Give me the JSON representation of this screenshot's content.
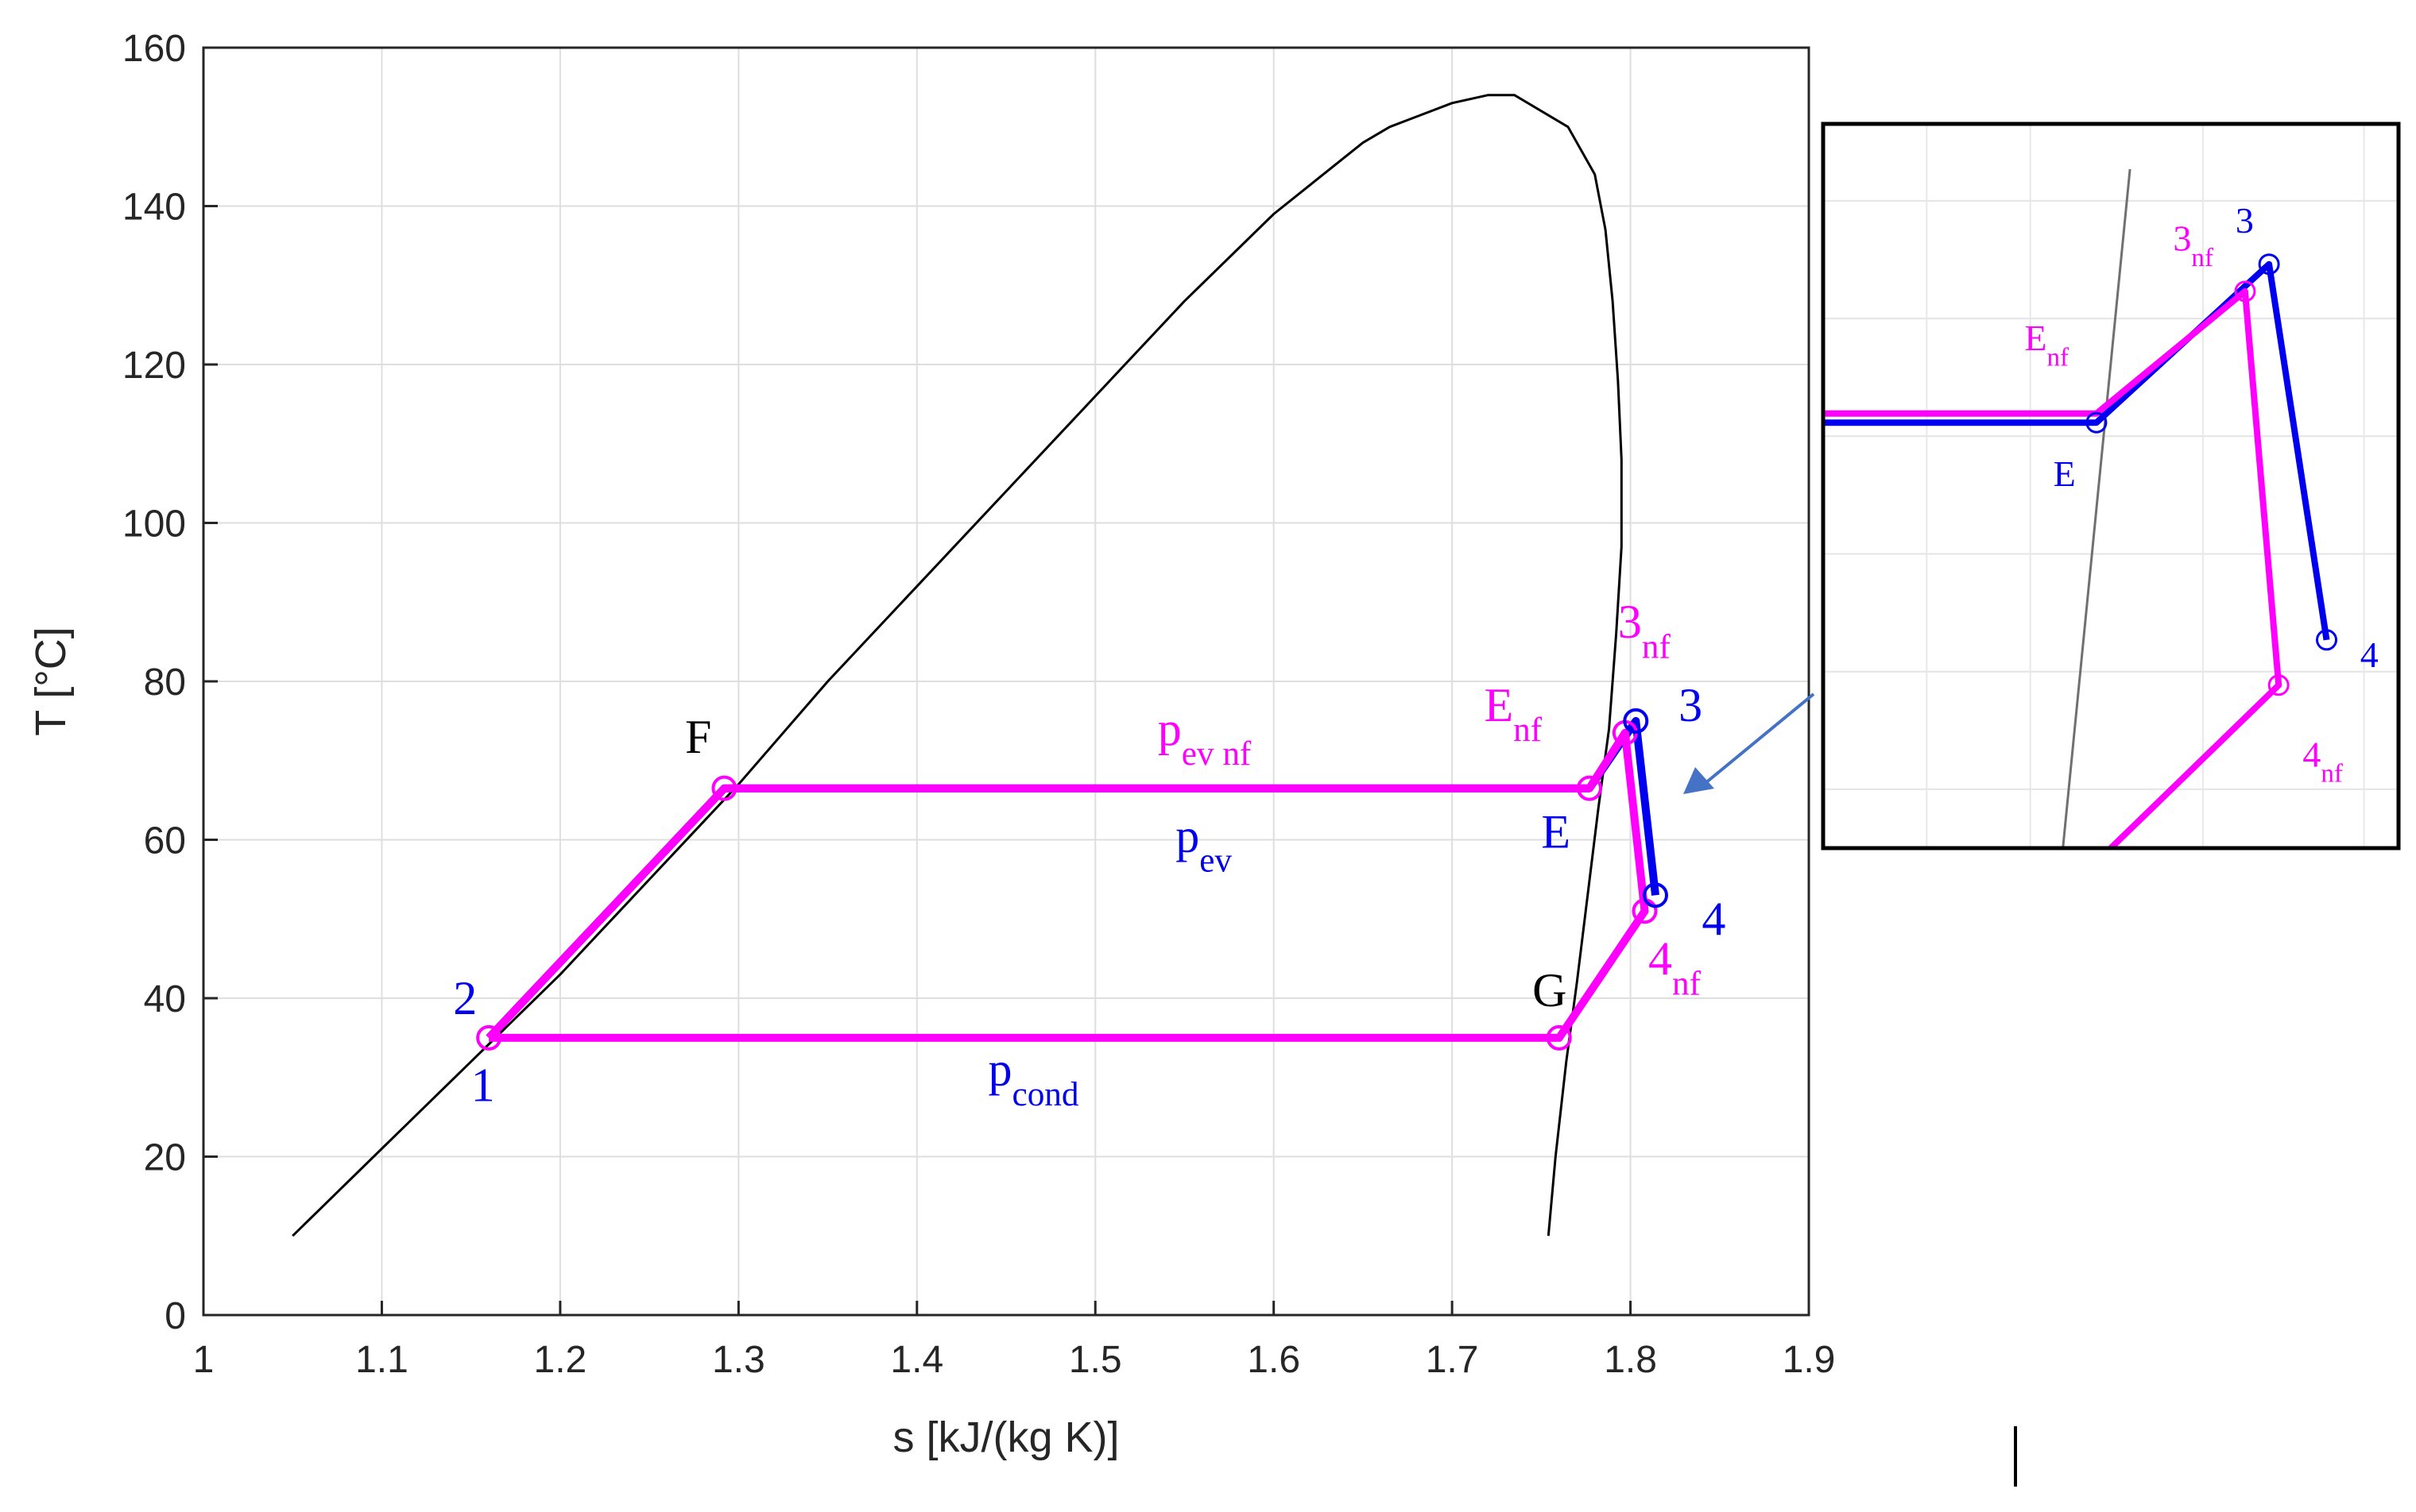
{
  "chart_data": {
    "type": "line",
    "xlabel": "s [kJ/(kg K)]",
    "ylabel": "T [°C]",
    "xlim": [
      1,
      1.9
    ],
    "ylim": [
      0,
      160
    ],
    "xticks": [
      "1",
      "1.1",
      "1.2",
      "1.3",
      "1.4",
      "1.5",
      "1.6",
      "1.7",
      "1.8",
      "1.9"
    ],
    "yticks": [
      "0",
      "20",
      "40",
      "60",
      "80",
      "100",
      "120",
      "140",
      "160"
    ],
    "grid": true,
    "colors": {
      "blue": "#0000ee",
      "magenta": "#ff00ff",
      "dome": "#000000"
    },
    "dome": {
      "x": [
        1.05,
        1.1,
        1.15,
        1.2,
        1.25,
        1.3,
        1.35,
        1.4,
        1.45,
        1.5,
        1.55,
        1.6,
        1.65,
        1.665,
        1.7,
        1.72,
        1.735,
        1.765,
        1.78,
        1.786,
        1.79,
        1.793,
        1.795,
        1.795,
        1.792,
        1.788,
        1.782,
        1.776,
        1.77,
        1.764,
        1.758,
        1.754
      ],
      "y": [
        10,
        21,
        32,
        43,
        55,
        67,
        80,
        92,
        104,
        116,
        128,
        139,
        148,
        150,
        153,
        154,
        154,
        150,
        144,
        137,
        128,
        118,
        108,
        97,
        86,
        74,
        64,
        53,
        42,
        32,
        20,
        10
      ]
    },
    "series": [
      {
        "x": [
          1.16,
          1.292,
          1.777,
          1.803,
          1.814
        ],
        "y": [
          35,
          66.5,
          66.5,
          75,
          53
        ]
      },
      {
        "x": [
          1.16,
          1.292,
          1.777,
          1.797,
          1.808,
          1.76,
          1.16
        ],
        "y": [
          35,
          66.5,
          66.5,
          73.5,
          51,
          35,
          35
        ]
      }
    ],
    "markers": [
      {
        "x": 1.16,
        "y": 35,
        "color": "magenta"
      },
      {
        "x": 1.292,
        "y": 66.5,
        "color": "magenta"
      },
      {
        "x": 1.777,
        "y": 66.5,
        "color": "magenta"
      },
      {
        "x": 1.797,
        "y": 73.5,
        "color": "magenta"
      },
      {
        "x": 1.808,
        "y": 51,
        "color": "magenta"
      },
      {
        "x": 1.76,
        "y": 35,
        "color": "magenta"
      },
      {
        "x": 1.803,
        "y": 75,
        "color": "blue"
      },
      {
        "x": 1.814,
        "y": 53,
        "color": "blue"
      }
    ],
    "annotations": [
      {
        "id": "2",
        "text": "2",
        "sub": "",
        "color": "blue",
        "x": 1.14,
        "y": 38
      },
      {
        "id": "1",
        "text": "1",
        "sub": "",
        "color": "blue",
        "x": 1.15,
        "y": 27
      },
      {
        "id": "F",
        "text": "F",
        "sub": "",
        "color": "black",
        "x": 1.27,
        "y": 71
      },
      {
        "id": "pev-nf",
        "text": "p",
        "sub": "ev nf",
        "color": "magenta",
        "x": 1.535,
        "y": 72
      },
      {
        "id": "pev",
        "text": "p",
        "sub": "ev",
        "color": "blue",
        "x": 1.545,
        "y": 58.5
      },
      {
        "id": "pcond",
        "text": "p",
        "sub": "cond",
        "color": "blue",
        "x": 1.44,
        "y": 29
      },
      {
        "id": "Enf",
        "text": "E",
        "sub": "nf",
        "color": "magenta",
        "x": 1.718,
        "y": 75
      },
      {
        "id": "E",
        "text": "E",
        "sub": "",
        "color": "blue",
        "x": 1.75,
        "y": 59
      },
      {
        "id": "3nf",
        "text": "3",
        "sub": "nf",
        "color": "magenta",
        "x": 1.793,
        "y": 85.5
      },
      {
        "id": "3",
        "text": "3",
        "sub": "",
        "color": "blue",
        "x": 1.827,
        "y": 75
      },
      {
        "id": "G",
        "text": "G",
        "sub": "",
        "color": "black",
        "x": 1.745,
        "y": 39
      },
      {
        "id": "4",
        "text": "4",
        "sub": "",
        "color": "blue",
        "x": 1.84,
        "y": 48
      },
      {
        "id": "4nf",
        "text": "4",
        "sub": "nf",
        "color": "magenta",
        "x": 1.81,
        "y": 43
      }
    ],
    "inset": {
      "dome_line": {
        "x": [
          2.5,
          3.2
        ],
        "y": [
          0.0,
          7.5
        ]
      },
      "blue_path": {
        "x": [
          0,
          2.85,
          4.65,
          5.25
        ],
        "y": [
          4.7,
          4.7,
          6.45,
          2.3
        ]
      },
      "magenta_path": {
        "x": [
          0,
          2.85,
          4.4,
          4.75,
          3.0
        ],
        "y": [
          4.8,
          4.8,
          6.15,
          1.8,
          0
        ]
      },
      "markers": [
        {
          "x": 2.85,
          "y": 4.7,
          "color": "blue"
        },
        {
          "x": 4.65,
          "y": 6.45,
          "color": "blue"
        },
        {
          "x": 5.25,
          "y": 2.3,
          "color": "blue"
        },
        {
          "x": 4.4,
          "y": 6.15,
          "color": "magenta"
        },
        {
          "x": 4.75,
          "y": 1.8,
          "color": "magenta"
        }
      ],
      "annotations": [
        {
          "id": "in-3nf",
          "text": "3",
          "sub": "nf",
          "color": "magenta",
          "x": 3.65,
          "y": 6.6
        },
        {
          "id": "in-3",
          "text": "3",
          "sub": "",
          "color": "blue",
          "x": 4.3,
          "y": 6.8
        },
        {
          "id": "in-Enf",
          "text": "E",
          "sub": "nf",
          "color": "magenta",
          "x": 2.1,
          "y": 5.5
        },
        {
          "id": "in-E",
          "text": "E",
          "sub": "",
          "color": "blue",
          "x": 2.4,
          "y": 4.0
        },
        {
          "id": "in-4",
          "text": "4",
          "sub": "",
          "color": "blue",
          "x": 5.6,
          "y": 2.0
        },
        {
          "id": "in-4nf",
          "text": "4",
          "sub": "nf",
          "color": "magenta",
          "x": 5.0,
          "y": 0.9
        }
      ]
    }
  }
}
